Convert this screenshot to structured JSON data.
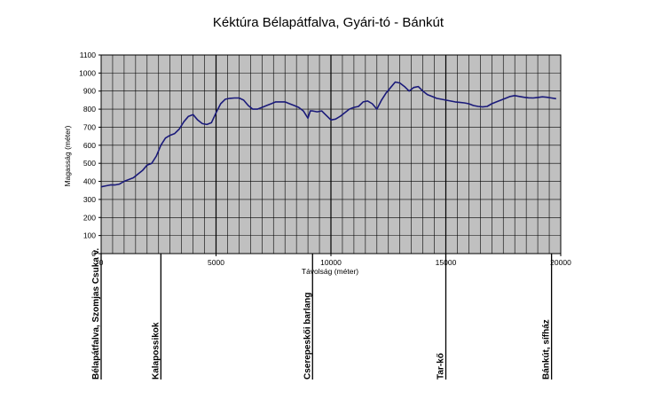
{
  "chart_data": {
    "type": "line",
    "title": "Kéktúra Bélapátfalva, Gyári-tó - Bánkút",
    "xlabel": "Távolság (méter)",
    "ylabel": "Magasság (méter)",
    "xlim": [
      0,
      20000
    ],
    "ylim": [
      0,
      1100
    ],
    "x_ticks": [
      0,
      5000,
      10000,
      15000,
      20000
    ],
    "y_ticks": [
      0,
      100,
      200,
      300,
      400,
      500,
      600,
      700,
      800,
      900,
      1000,
      1100
    ],
    "grid": true,
    "legend": "none",
    "plot_background": "#c0c0c0",
    "line_color": "#1a1a7a",
    "series": [
      {
        "x": [
          0,
          200,
          400,
          600,
          800,
          1000,
          1200,
          1400,
          1600,
          1800,
          2000,
          2200,
          2400,
          2600,
          2800,
          3000,
          3200,
          3400,
          3600,
          3800,
          4000,
          4200,
          4400,
          4600,
          4800,
          5000,
          5200,
          5400,
          5600,
          5800,
          6000,
          6200,
          6400,
          6600,
          6800,
          7000,
          7200,
          7400,
          7600,
          7800,
          8000,
          8200,
          8400,
          8600,
          8800,
          9000,
          9100,
          9200,
          9400,
          9600,
          9800,
          10000,
          10200,
          10400,
          10600,
          10800,
          11000,
          11200,
          11400,
          11600,
          11800,
          12000,
          12200,
          12400,
          12600,
          12800,
          13000,
          13200,
          13400,
          13600,
          13800,
          14000,
          14200,
          14400,
          14600,
          14800,
          15000,
          15200,
          15400,
          15600,
          15800,
          16000,
          16200,
          16400,
          16600,
          16800,
          17000,
          17200,
          17400,
          17600,
          17800,
          18000,
          18200,
          18400,
          18600,
          18800,
          19000,
          19200,
          19400,
          19600,
          19800
        ],
        "values": [
          370,
          375,
          380,
          380,
          385,
          400,
          410,
          420,
          440,
          460,
          490,
          500,
          540,
          600,
          640,
          655,
          665,
          690,
          730,
          760,
          770,
          740,
          720,
          715,
          725,
          780,
          830,
          855,
          860,
          862,
          862,
          850,
          820,
          800,
          800,
          810,
          820,
          830,
          840,
          840,
          840,
          830,
          820,
          810,
          790,
          750,
          790,
          790,
          785,
          790,
          765,
          740,
          745,
          760,
          780,
          800,
          810,
          815,
          840,
          845,
          830,
          800,
          850,
          890,
          920,
          950,
          945,
          925,
          900,
          920,
          925,
          900,
          880,
          870,
          860,
          855,
          850,
          845,
          840,
          838,
          835,
          830,
          820,
          815,
          812,
          815,
          830,
          840,
          850,
          860,
          870,
          875,
          870,
          866,
          863,
          862,
          865,
          868,
          866,
          862,
          858
        ]
      }
    ],
    "waypoints": [
      {
        "x": 0,
        "label": "Bélapátfalva, Szomjas Csuka v."
      },
      {
        "x": 2600,
        "label": "Kalapossikok"
      },
      {
        "x": 9200,
        "label": "Cserepeskői barlang"
      },
      {
        "x": 15000,
        "label": "Tar-kő"
      },
      {
        "x": 19600,
        "label": "Bánkút, sífház"
      }
    ]
  }
}
